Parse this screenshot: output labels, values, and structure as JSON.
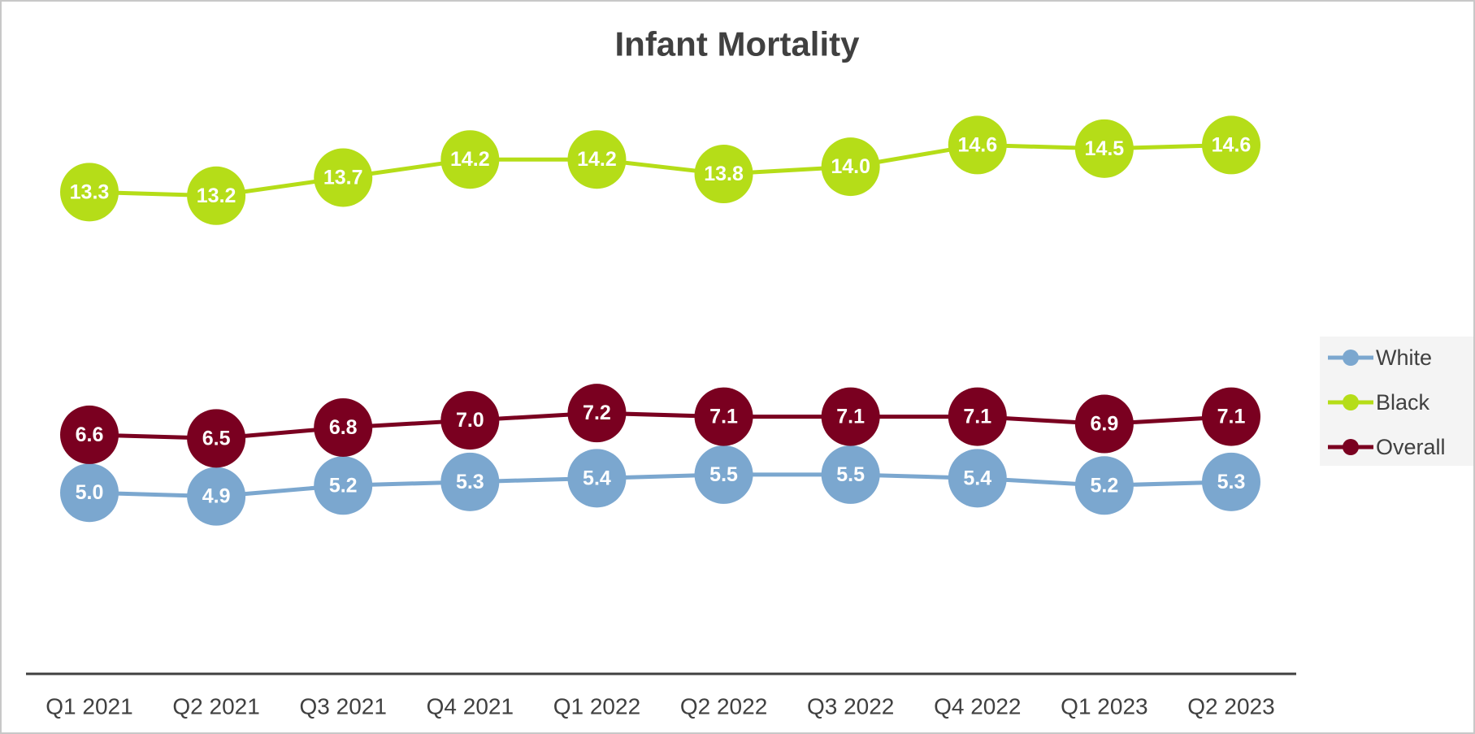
{
  "chart_data": {
    "type": "line",
    "title": "Infant Mortality",
    "categories": [
      "Q1 2021",
      "Q2 2021",
      "Q3 2021",
      "Q4 2021",
      "Q1 2022",
      "Q2 2022",
      "Q3 2022",
      "Q4 2022",
      "Q1 2023",
      "Q2 2023"
    ],
    "series": [
      {
        "name": "White",
        "color": "#7ba7cf",
        "values": [
          5.0,
          4.9,
          5.2,
          5.3,
          5.4,
          5.5,
          5.5,
          5.4,
          5.2,
          5.3
        ],
        "value_labels": [
          "5.0",
          "4.9",
          "5.2",
          "5.3",
          "5.4",
          "5.5",
          "5.5",
          "5.4",
          "5.2",
          "5.3"
        ]
      },
      {
        "name": "Black",
        "color": "#b5dd18",
        "values": [
          13.3,
          13.2,
          13.7,
          14.2,
          14.2,
          13.8,
          14.0,
          14.6,
          14.5,
          14.6
        ],
        "value_labels": [
          "13.3",
          "13.2",
          "13.7",
          "14.2",
          "14.2",
          "13.8",
          "14.0",
          "14.6",
          "14.5",
          "14.6"
        ]
      },
      {
        "name": "Overall",
        "color": "#7a0020",
        "values": [
          6.6,
          6.5,
          6.8,
          7.0,
          7.2,
          7.1,
          7.1,
          7.1,
          6.9,
          7.1
        ],
        "value_labels": [
          "6.6",
          "6.5",
          "6.8",
          "7.0",
          "7.2",
          "7.1",
          "7.1",
          "7.1",
          "6.9",
          "7.1"
        ]
      }
    ],
    "ylim": [
      0,
      16
    ],
    "legend": "right"
  }
}
